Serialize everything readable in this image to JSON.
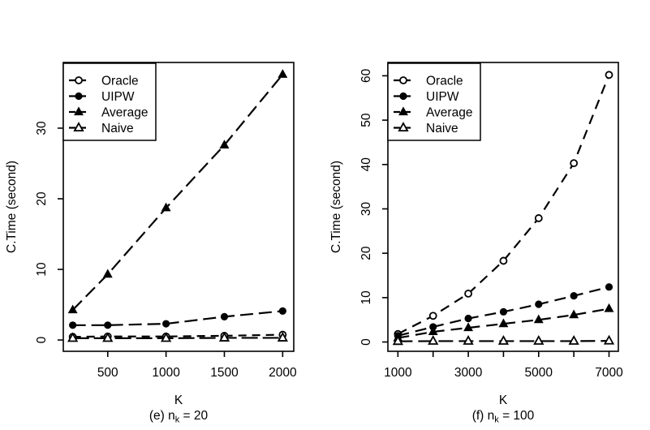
{
  "figure": {
    "background": "#ffffff",
    "foreground": "#000000"
  },
  "chart_data": [
    {
      "type": "line",
      "panel_id": "left",
      "title": "",
      "xlabel": "K",
      "ylabel": "C.Time (second)",
      "caption": {
        "prefix": "(e) n",
        "sub": "k",
        "suffix": " = 20"
      },
      "x": [
        200,
        500,
        1000,
        1500,
        2000
      ],
      "xticks": [
        500,
        1000,
        1500,
        2000
      ],
      "xtick_labels": [
        "500",
        "1000",
        "1500",
        "2000"
      ],
      "yticks": [
        0,
        10,
        20,
        30
      ],
      "ytick_labels": [
        "0",
        "10",
        "20",
        "30"
      ],
      "xlim": [
        119,
        2095
      ],
      "ylim": [
        -1.6,
        39.3
      ],
      "grid": false,
      "legend_position": "top-left",
      "line_color": "#000000",
      "series": [
        {
          "name": "Oracle",
          "marker": "circle-open",
          "dash": "10,7",
          "values": [
            0.45,
            0.5,
            0.5,
            0.6,
            0.75
          ]
        },
        {
          "name": "UIPW",
          "marker": "circle-filled",
          "dash": "16,7",
          "values": [
            2.1,
            2.1,
            2.3,
            3.3,
            4.1
          ]
        },
        {
          "name": "Average",
          "marker": "triangle-filled",
          "dash": "16,7",
          "values": [
            4.25,
            9.3,
            18.7,
            27.6,
            37.6
          ]
        },
        {
          "name": "Naive",
          "marker": "triangle-open",
          "dash": "20,6",
          "values": [
            0.25,
            0.25,
            0.25,
            0.3,
            0.3
          ]
        }
      ]
    },
    {
      "type": "line",
      "panel_id": "right",
      "title": "",
      "xlabel": "K",
      "ylabel": "C.Time (second)",
      "caption": {
        "prefix": "(f) n",
        "sub": "k",
        "suffix": " = 100"
      },
      "x": [
        1000,
        2000,
        3000,
        4000,
        5000,
        6000,
        7000
      ],
      "xticks": [
        1000,
        2000,
        3000,
        4000,
        5000,
        6000,
        7000
      ],
      "xtick_labels": [
        "1000",
        "",
        "3000",
        "",
        "5000",
        "",
        "7000"
      ],
      "yticks": [
        0,
        10,
        20,
        30,
        40,
        50,
        60
      ],
      "ytick_labels": [
        "0",
        "10",
        "20",
        "30",
        "40",
        "50",
        "60"
      ],
      "xlim": [
        715,
        7265
      ],
      "ylim": [
        -2.1,
        63.0
      ],
      "grid": false,
      "legend_position": "top-left",
      "line_color": "#000000",
      "series": [
        {
          "name": "Oracle",
          "marker": "circle-open",
          "dash": "12,8",
          "values": [
            1.8,
            5.9,
            10.9,
            18.3,
            27.9,
            40.3,
            60.2
          ]
        },
        {
          "name": "UIPW",
          "marker": "circle-filled",
          "dash": "14,8",
          "values": [
            1.4,
            3.4,
            5.3,
            6.8,
            8.5,
            10.4,
            12.4
          ]
        },
        {
          "name": "Average",
          "marker": "triangle-filled",
          "dash": "14,8",
          "values": [
            0.9,
            2.3,
            3.2,
            4.1,
            5.0,
            6.1,
            7.5
          ]
        },
        {
          "name": "Naive",
          "marker": "triangle-open",
          "dash": "18,7",
          "values": [
            0.15,
            0.2,
            0.2,
            0.2,
            0.2,
            0.2,
            0.25
          ]
        }
      ]
    }
  ]
}
